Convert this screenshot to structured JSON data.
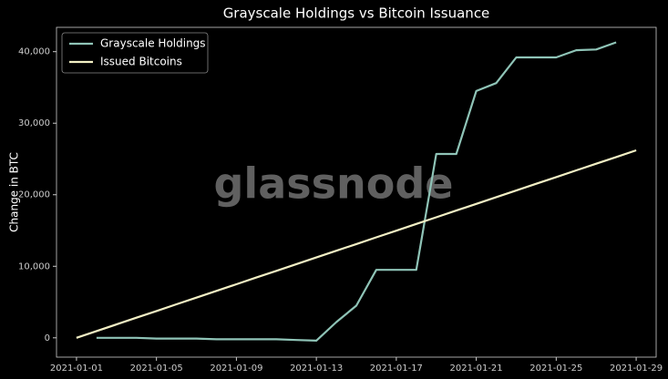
{
  "chart_data": {
    "type": "line",
    "title": "Grayscale Holdings vs Bitcoin Issuance",
    "y_label": "Change in BTC",
    "watermark": "glassnode",
    "legend": "upper left",
    "x": [
      "2021-01-01",
      "2021-01-02",
      "2021-01-03",
      "2021-01-04",
      "2021-01-05",
      "2021-01-06",
      "2021-01-07",
      "2021-01-08",
      "2021-01-09",
      "2021-01-10",
      "2021-01-11",
      "2021-01-12",
      "2021-01-13",
      "2021-01-14",
      "2021-01-15",
      "2021-01-16",
      "2021-01-17",
      "2021-01-18",
      "2021-01-19",
      "2021-01-20",
      "2021-01-21",
      "2021-01-22",
      "2021-01-23",
      "2021-01-24",
      "2021-01-25",
      "2021-01-26",
      "2021-01-27",
      "2021-01-28",
      "2021-01-29"
    ],
    "xlim": [
      "2020-12-31",
      "2021-01-30"
    ],
    "xticks": [
      "2021-01-01",
      "2021-01-05",
      "2021-01-09",
      "2021-01-13",
      "2021-01-17",
      "2021-01-21",
      "2021-01-25",
      "2021-01-29"
    ],
    "ylim": [
      -2700,
      43400
    ],
    "yticks": [
      0,
      {
        "value": 10000,
        "label": "10,000"
      },
      {
        "value": 20000,
        "label": "20,000"
      },
      {
        "value": 30000,
        "label": "30,000"
      },
      {
        "value": 40000,
        "label": "40,000"
      }
    ],
    "series": [
      {
        "name": "Grayscale Holdings",
        "color": "#8fc4b7",
        "values": [
          null,
          0,
          0,
          0,
          -100,
          -100,
          -100,
          -200,
          -200,
          -200,
          -200,
          -300,
          -400,
          2200,
          4500,
          9500,
          9500,
          9500,
          25700,
          25700,
          34500,
          35600,
          39200,
          39200,
          39200,
          40200,
          40300,
          41300,
          null
        ]
      },
      {
        "name": "Issued Bitcoins",
        "color": "#f2efc4",
        "values": [
          0,
          936,
          1872,
          2808,
          3744,
          4680,
          5616,
          6552,
          7488,
          8424,
          9360,
          10296,
          11232,
          12168,
          13104,
          14040,
          14976,
          15912,
          16848,
          17784,
          18720,
          19656,
          20592,
          21528,
          22464,
          23400,
          24336,
          25272,
          26208
        ]
      }
    ]
  }
}
